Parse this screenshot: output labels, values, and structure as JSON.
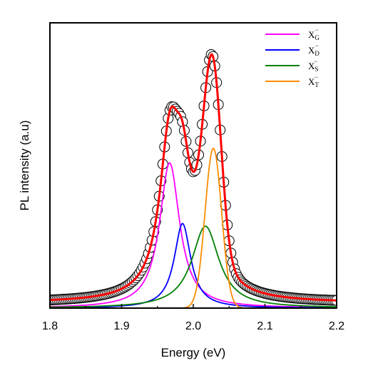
{
  "chart_data": {
    "type": "line",
    "xlabel": "Energy (eV)",
    "ylabel": "PL intensity (a.u)",
    "xlim": [
      1.8,
      2.2
    ],
    "ylim": [
      0,
      1.08
    ],
    "xticks": [
      "1.8",
      "1.9",
      "2.0",
      "2.1",
      "2.2"
    ],
    "yticks_shown": false,
    "legend_position": "top-right",
    "background_offset": 0.02,
    "series": [
      {
        "name": "X_G^-",
        "label_main": "X",
        "label_sub": "G",
        "label_sup": "−",
        "kind": "lorentzian",
        "color": "#ff00ff",
        "center": 1.967,
        "amplitude": 0.55,
        "hwhm": 0.017
      },
      {
        "name": "X_D^-",
        "label_main": "X",
        "label_sub": "D",
        "label_sup": "−",
        "kind": "lorentzian",
        "color": "#0000ff",
        "center": 1.985,
        "amplitude": 0.32,
        "hwhm": 0.014
      },
      {
        "name": "X_S^-",
        "label_main": "X",
        "label_sub": "S",
        "label_sup": "−",
        "kind": "lorentzian",
        "color": "#008000",
        "center": 2.017,
        "amplitude": 0.31,
        "hwhm": 0.023
      },
      {
        "name": "X_T^-",
        "label_main": "X",
        "label_sub": "T",
        "label_sup": "−",
        "kind": "gaussian",
        "color": "#ff8c00",
        "center": 2.028,
        "amplitude": 0.605,
        "sigma": 0.0115
      }
    ],
    "fit": {
      "color": "#ff0000"
    },
    "data_points": {
      "marker": "open-circle",
      "color": "#000000",
      "x_start": 1.8,
      "x_end": 2.2,
      "step": 0.0025
    }
  }
}
